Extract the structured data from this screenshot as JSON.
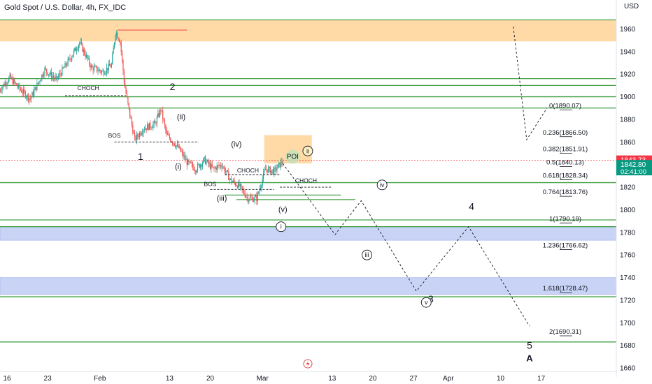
{
  "title": "Gold Spot / U.S. Dollar, 4h, FX_IDC",
  "colors": {
    "zone_orange": "#ffd9a6",
    "zone_blue": "#c8d3f5",
    "level_green": "#43a047",
    "candle_up": "#26a69a",
    "candle_down": "#ef5350",
    "price_red": "#f23645",
    "price_green": "#089981",
    "poi_circle": "#b9e3bd",
    "logo_red": "#e0504f"
  },
  "chart_data": {
    "type": "candlestick",
    "y_axis_label": "USD",
    "ylim": [
      1652,
      1972
    ],
    "y_ticks": [
      1660,
      1680,
      1700,
      1720,
      1740,
      1760,
      1780,
      1800,
      1820,
      1840,
      1860,
      1880,
      1900,
      1920,
      1940,
      1960
    ],
    "x_ticks": [
      {
        "label": "16",
        "day": 0
      },
      {
        "label": "23",
        "day": 7
      },
      {
        "label": "Feb",
        "day": 16
      },
      {
        "label": "13",
        "day": 28
      },
      {
        "label": "20",
        "day": 35
      },
      {
        "label": "Mar",
        "day": 44
      },
      {
        "label": "13",
        "day": 56
      },
      {
        "label": "20",
        "day": 63
      },
      {
        "label": "27",
        "day": 70
      },
      {
        "label": "Apr",
        "day": 76
      },
      {
        "label": "10",
        "day": 85
      },
      {
        "label": "17",
        "day": 92
      }
    ],
    "price_path": [
      {
        "day": -1.5,
        "price": 1905
      },
      {
        "day": 0.5,
        "price": 1917
      },
      {
        "day": 2,
        "price": 1908
      },
      {
        "day": 4,
        "price": 1898
      },
      {
        "day": 6.5,
        "price": 1924
      },
      {
        "day": 8.5,
        "price": 1915
      },
      {
        "day": 11,
        "price": 1935
      },
      {
        "day": 12.5,
        "price": 1948
      },
      {
        "day": 14.5,
        "price": 1926
      },
      {
        "day": 16.5,
        "price": 1922
      },
      {
        "day": 18,
        "price": 1928
      },
      {
        "day": 18.7,
        "price": 1958
      },
      {
        "day": 19.5,
        "price": 1949
      },
      {
        "day": 20.2,
        "price": 1912
      },
      {
        "day": 21,
        "price": 1888
      },
      {
        "day": 22,
        "price": 1862
      },
      {
        "day": 23.5,
        "price": 1872
      },
      {
        "day": 25.5,
        "price": 1876
      },
      {
        "day": 26.5,
        "price": 1889
      },
      {
        "day": 27.5,
        "price": 1866
      },
      {
        "day": 29.5,
        "price": 1855
      },
      {
        "day": 31,
        "price": 1842
      },
      {
        "day": 32.5,
        "price": 1836
      },
      {
        "day": 34,
        "price": 1844
      },
      {
        "day": 35.5,
        "price": 1836
      },
      {
        "day": 37,
        "price": 1840
      },
      {
        "day": 38.5,
        "price": 1826
      },
      {
        "day": 40,
        "price": 1821
      },
      {
        "day": 41.5,
        "price": 1810
      },
      {
        "day": 43,
        "price": 1810
      },
      {
        "day": 44.5,
        "price": 1836
      },
      {
        "day": 46,
        "price": 1834
      },
      {
        "day": 47.5,
        "price": 1843
      }
    ],
    "price_labels": [
      {
        "value": 1843.73,
        "text": "1843.73",
        "color": "#f23645"
      },
      {
        "value": 1842.8,
        "text": "1842.80",
        "sub": "02:41:00",
        "color": "#089981"
      }
    ],
    "zones": [
      {
        "y1": 1968,
        "y2": 1949,
        "color": "zone_orange",
        "x_from_day": -1.5
      },
      {
        "y1": 1785,
        "y2": 1773,
        "color": "zone_blue",
        "x_from_day": -1.5
      },
      {
        "y1": 1740,
        "y2": 1725,
        "color": "zone_blue",
        "x_from_day": -1.5
      },
      {
        "y1": 1866,
        "y2": 1841,
        "color": "zone_orange",
        "x_from_day": 44.3,
        "x_to_day": 52.5
      }
    ],
    "levels": [
      1968,
      1916,
      1910,
      1900,
      1890,
      1824,
      1791,
      1785,
      1723,
      1683
    ],
    "short_levels": [
      {
        "price": 1813,
        "from_day": 37.5,
        "to_day": 57.5
      },
      {
        "price": 1809,
        "from_day": 39.5,
        "to_day": 60
      }
    ],
    "top_marker": {
      "price": 1959,
      "from_day": 19,
      "to_day": 31
    },
    "fib_levels": [
      {
        "ratio": "0",
        "value": "1890.07",
        "price": 1890.07
      },
      {
        "ratio": "0.236",
        "value": "1866.50",
        "price": 1866.5
      },
      {
        "ratio": "0.382",
        "value": "1851.91",
        "price": 1851.91
      },
      {
        "ratio": "0.5",
        "value": "1840.13",
        "price": 1840.13
      },
      {
        "ratio": "0.618",
        "value": "1828.34",
        "price": 1828.34
      },
      {
        "ratio": "0.764",
        "value": "1813.76",
        "price": 1813.76
      },
      {
        "ratio": "1",
        "value": "1790.19",
        "price": 1790.19
      },
      {
        "ratio": "1.236",
        "value": "1766.62",
        "price": 1766.62
      },
      {
        "ratio": "1.618",
        "value": "1728.47",
        "price": 1728.47
      },
      {
        "ratio": "2",
        "value": "1690.31",
        "price": 1690.31
      }
    ],
    "projection": [
      {
        "day": 47.5,
        "price": 1841
      },
      {
        "day": 56.5,
        "price": 1778
      },
      {
        "day": 61,
        "price": 1808
      },
      {
        "day": 70.5,
        "price": 1728
      },
      {
        "day": 79.5,
        "price": 1785
      },
      {
        "day": 90,
        "price": 1697
      }
    ],
    "fib_arrow": [
      {
        "day": 87.2,
        "price": 1962
      },
      {
        "day": 89.5,
        "price": 1862
      },
      {
        "day": 93,
        "price": 1890
      }
    ],
    "structure_marks": [
      {
        "text": "CHOCH",
        "day": 14,
        "price": 1906,
        "from_day": 10,
        "to_day": 20.5,
        "line_price": 1901
      },
      {
        "text": "BOS",
        "day": 18.5,
        "price": 1864,
        "from_day": 18.5,
        "to_day": 33,
        "line_price": 1860
      },
      {
        "text": "CHOCH",
        "day": 41.5,
        "price": 1833,
        "from_day": 37.5,
        "to_day": 47,
        "line_price": 1831
      },
      {
        "text": "BOS",
        "day": 35,
        "price": 1821,
        "from_day": 35,
        "to_day": 46,
        "line_price": 1818
      },
      {
        "text": "CHOCH",
        "day": 51.5,
        "price": 1824,
        "from_day": 47,
        "to_day": 56,
        "line_price": 1820
      }
    ],
    "wave_labels": [
      {
        "text": "2",
        "day": 28.5,
        "price": 1906,
        "size": 14
      },
      {
        "text": "1",
        "day": 23,
        "price": 1844,
        "size": 14
      },
      {
        "text": "(ii)",
        "day": 30,
        "price": 1880,
        "size": 11
      },
      {
        "text": "(i)",
        "day": 29.5,
        "price": 1836,
        "size": 11
      },
      {
        "text": "(iv)",
        "day": 39.5,
        "price": 1856,
        "size": 11
      },
      {
        "text": "(iii)",
        "day": 37,
        "price": 1808,
        "size": 11
      },
      {
        "text": "(v)",
        "day": 47.5,
        "price": 1798,
        "size": 11
      },
      {
        "text": "POI",
        "day": 49.2,
        "price": 1845,
        "size": 10
      },
      {
        "text": "4",
        "day": 80,
        "price": 1800,
        "size": 14
      },
      {
        "text": "3",
        "day": 73,
        "price": 1718,
        "size": 14
      },
      {
        "text": "5",
        "day": 90,
        "price": 1677,
        "size": 14
      },
      {
        "text": "A",
        "day": 90,
        "price": 1666,
        "size": 13
      }
    ],
    "circled_labels": [
      {
        "text": "i",
        "day": 47.2,
        "price": 1785
      },
      {
        "text": "ii",
        "day": 51.8,
        "price": 1852
      },
      {
        "text": "iii",
        "day": 62,
        "price": 1760
      },
      {
        "text": "iv",
        "day": 64.6,
        "price": 1822
      },
      {
        "text": "v",
        "day": 72.2,
        "price": 1718
      }
    ]
  }
}
